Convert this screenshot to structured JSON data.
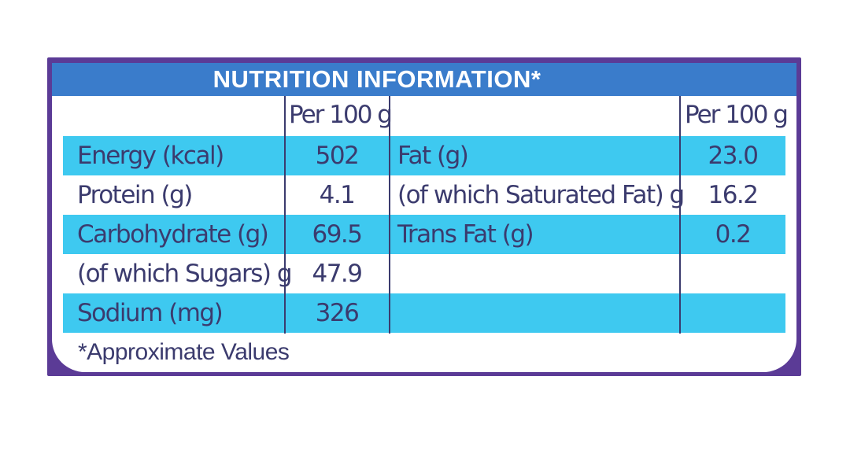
{
  "title": "NUTRITION INFORMATION*",
  "column_header_left": "Per 100 g",
  "column_header_right": "Per 100 g",
  "rows": [
    {
      "label_left": "Energy (kcal)",
      "value_left": "502",
      "label_right": "Fat (g)",
      "value_right": "23.0"
    },
    {
      "label_left": "Protein (g)",
      "value_left": "4.1",
      "label_right": "(of which Saturated Fat) g",
      "value_right": "16.2"
    },
    {
      "label_left": "Carbohydrate (g)",
      "value_left": "69.5",
      "label_right": "Trans Fat (g)",
      "value_right": "0.2"
    },
    {
      "label_left": "(of which Sugars) g",
      "value_left": "47.9",
      "label_right": "",
      "value_right": ""
    },
    {
      "label_left": "Sodium (mg)",
      "value_left": "326",
      "label_right": "",
      "value_right": ""
    }
  ],
  "footnote": "*Approximate Values",
  "colors": {
    "frame": "#5b3b96",
    "header": "#3a7ccb",
    "row_highlight": "#3ec9f0",
    "text": "#3b3b6e"
  }
}
